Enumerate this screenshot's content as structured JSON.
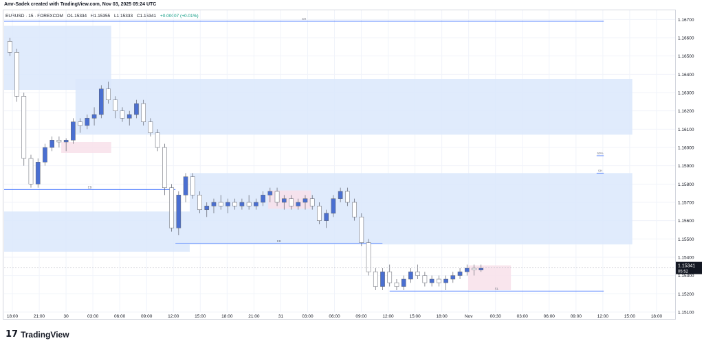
{
  "header": {
    "credit": "Amr-Sadek created with TradingView.com, Nov 03, 2025 05:24 UTC",
    "symbol": "EURUSD · 15 · FOREXCOM",
    "open": "O1.15334",
    "high": "H1.15355",
    "low": "L1.15333",
    "close": "C1.15341",
    "change": "+0.00007 (+0.01%)"
  },
  "footer": {
    "logo_mark": "17",
    "logo_text": "TradingView"
  },
  "colors": {
    "up": "#4a6fd1",
    "down": "#ffffff",
    "wick": "#5d606b",
    "zone_blue": "#dbe7fb",
    "zone_pink": "#f8e1ea",
    "grid": "#f0f3fa",
    "axis_text": "#131722",
    "price_tag": "#131722"
  },
  "chart_data": {
    "type": "candlestick",
    "title": "",
    "ylim": [
      1.151,
      1.1675
    ],
    "y_ticks": [
      "1.16700",
      "1.16600",
      "1.16500",
      "1.16400",
      "1.16300",
      "1.16200",
      "1.16100",
      "1.16000",
      "1.15900",
      "1.15800",
      "1.15700",
      "1.15600",
      "1.15500",
      "1.15400",
      "1.15300",
      "1.15200",
      "1.15100"
    ],
    "x_ticks": [
      "18:00",
      "21:00",
      "30",
      "03:00",
      "06:00",
      "09:00",
      "12:00",
      "15:00",
      "18:00",
      "21:00",
      "31",
      "03:00",
      "06:00",
      "09:00",
      "12:00",
      "15:00",
      "18:00",
      "Nov",
      "00:30",
      "03:00",
      "06:00",
      "09:00",
      "12:00",
      "15:00",
      "18:00"
    ],
    "last_price": "1.15341",
    "countdown": "05:52",
    "zones": [
      {
        "kind": "blue",
        "t0": 0,
        "t1": 15,
        "p0": 1.16665,
        "p1": 1.16315
      },
      {
        "kind": "blue",
        "t0": 10,
        "t1": 88,
        "p0": 1.16375,
        "p1": 1.1607
      },
      {
        "kind": "pink",
        "t0": 8,
        "t1": 15,
        "p0": 1.1603,
        "p1": 1.1597
      },
      {
        "kind": "blue",
        "t0": 0,
        "t1": 26,
        "p0": 1.1565,
        "p1": 1.1543
      },
      {
        "kind": "blue",
        "t0": 26,
        "t1": 88,
        "p0": 1.1586,
        "p1": 1.1547
      },
      {
        "kind": "pink",
        "t0": 37,
        "t1": 43,
        "p0": 1.15765,
        "p1": 1.15665
      },
      {
        "kind": "pink",
        "t0": 65,
        "t1": 71,
        "p0": 1.15355,
        "p1": 1.1522
      }
    ],
    "levels": [
      {
        "price": 1.1669,
        "t0": 0,
        "t1": 84,
        "label": "SH"
      },
      {
        "price": 1.1577,
        "t0": 0,
        "t1": 24,
        "label": "EB"
      },
      {
        "price": 1.15475,
        "t0": 24,
        "t1": 53,
        "label": "EB"
      },
      {
        "price": 1.15215,
        "t0": 54,
        "t1": 84,
        "label": "SL"
      },
      {
        "price": 1.1586,
        "t0": 83,
        "t1": 84,
        "label": "SH"
      },
      {
        "price": 1.15955,
        "t0": 83,
        "t1": 84,
        "label": "50%"
      }
    ],
    "candles": [
      [
        1.1658,
        1.166,
        1.165,
        1.1652
      ],
      [
        1.1652,
        1.1654,
        1.1625,
        1.1628
      ],
      [
        1.1628,
        1.163,
        1.159,
        1.1594
      ],
      [
        1.1594,
        1.1596,
        1.1578,
        1.158
      ],
      [
        1.158,
        1.1594,
        1.1578,
        1.1592
      ],
      [
        1.1592,
        1.1602,
        1.159,
        1.16
      ],
      [
        1.16,
        1.1606,
        1.1598,
        1.1604
      ],
      [
        1.1604,
        1.1606,
        1.16,
        1.1603
      ],
      [
        1.1603,
        1.1605,
        1.1598,
        1.1604
      ],
      [
        1.1604,
        1.1616,
        1.1602,
        1.1614
      ],
      [
        1.1614,
        1.1616,
        1.1608,
        1.1612
      ],
      [
        1.1612,
        1.1618,
        1.161,
        1.1616
      ],
      [
        1.1616,
        1.1622,
        1.1612,
        1.1618
      ],
      [
        1.1618,
        1.1634,
        1.1616,
        1.1632
      ],
      [
        1.1632,
        1.1636,
        1.1624,
        1.1626
      ],
      [
        1.1626,
        1.1628,
        1.1616,
        1.162
      ],
      [
        1.162,
        1.1622,
        1.1614,
        1.1616
      ],
      [
        1.1616,
        1.162,
        1.1612,
        1.1618
      ],
      [
        1.1618,
        1.1626,
        1.1616,
        1.1624
      ],
      [
        1.1624,
        1.1626,
        1.1612,
        1.1614
      ],
      [
        1.1614,
        1.1616,
        1.1606,
        1.1608
      ],
      [
        1.1608,
        1.161,
        1.1598,
        1.16
      ],
      [
        1.16,
        1.1602,
        1.1574,
        1.1578
      ],
      [
        1.1578,
        1.158,
        1.1554,
        1.1556
      ],
      [
        1.1556,
        1.1576,
        1.1552,
        1.1574
      ],
      [
        1.1574,
        1.1586,
        1.157,
        1.1584
      ],
      [
        1.1584,
        1.1586,
        1.1572,
        1.1574
      ],
      [
        1.1574,
        1.1576,
        1.1564,
        1.1566
      ],
      [
        1.1566,
        1.157,
        1.1562,
        1.1568
      ],
      [
        1.1568,
        1.1572,
        1.1564,
        1.157
      ],
      [
        1.157,
        1.1574,
        1.1566,
        1.1568
      ],
      [
        1.1568,
        1.1572,
        1.1564,
        1.157
      ],
      [
        1.157,
        1.1572,
        1.1566,
        1.1568
      ],
      [
        1.1568,
        1.1572,
        1.1566,
        1.157
      ],
      [
        1.157,
        1.1574,
        1.1566,
        1.1568
      ],
      [
        1.1568,
        1.1572,
        1.1566,
        1.157
      ],
      [
        1.157,
        1.1576,
        1.1568,
        1.1574
      ],
      [
        1.1574,
        1.1578,
        1.157,
        1.1576
      ],
      [
        1.1576,
        1.1578,
        1.1568,
        1.157
      ],
      [
        1.157,
        1.1574,
        1.1566,
        1.1572
      ],
      [
        1.1572,
        1.1574,
        1.1566,
        1.1568
      ],
      [
        1.1568,
        1.1572,
        1.1566,
        1.157
      ],
      [
        1.157,
        1.1574,
        1.1566,
        1.1572
      ],
      [
        1.1572,
        1.1574,
        1.1566,
        1.1568
      ],
      [
        1.1568,
        1.157,
        1.1558,
        1.156
      ],
      [
        1.156,
        1.1566,
        1.1556,
        1.1564
      ],
      [
        1.1564,
        1.1574,
        1.1562,
        1.1572
      ],
      [
        1.1572,
        1.1578,
        1.157,
        1.1576
      ],
      [
        1.1576,
        1.1578,
        1.1568,
        1.157
      ],
      [
        1.157,
        1.1572,
        1.156,
        1.1562
      ],
      [
        1.1562,
        1.1564,
        1.1546,
        1.1548
      ],
      [
        1.1548,
        1.155,
        1.153,
        1.1532
      ],
      [
        1.1532,
        1.1534,
        1.1522,
        1.1524
      ],
      [
        1.1524,
        1.1534,
        1.1522,
        1.1532
      ],
      [
        1.1532,
        1.1536,
        1.1524,
        1.1526
      ],
      [
        1.1526,
        1.1528,
        1.1522,
        1.1524
      ],
      [
        1.1524,
        1.153,
        1.1522,
        1.1528
      ],
      [
        1.1528,
        1.1534,
        1.1526,
        1.1532
      ],
      [
        1.1532,
        1.1536,
        1.1528,
        1.153
      ],
      [
        1.153,
        1.1532,
        1.1524,
        1.1526
      ],
      [
        1.1526,
        1.153,
        1.1524,
        1.1528
      ],
      [
        1.1528,
        1.153,
        1.1524,
        1.1526
      ],
      [
        1.1526,
        1.153,
        1.1522,
        1.1528
      ],
      [
        1.1528,
        1.1532,
        1.1526,
        1.153
      ],
      [
        1.153,
        1.1534,
        1.1528,
        1.1532
      ],
      [
        1.1532,
        1.1536,
        1.153,
        1.1534
      ],
      [
        1.1534,
        1.1536,
        1.153,
        1.1533
      ],
      [
        1.1533,
        1.1536,
        1.1532,
        1.1534
      ]
    ]
  }
}
